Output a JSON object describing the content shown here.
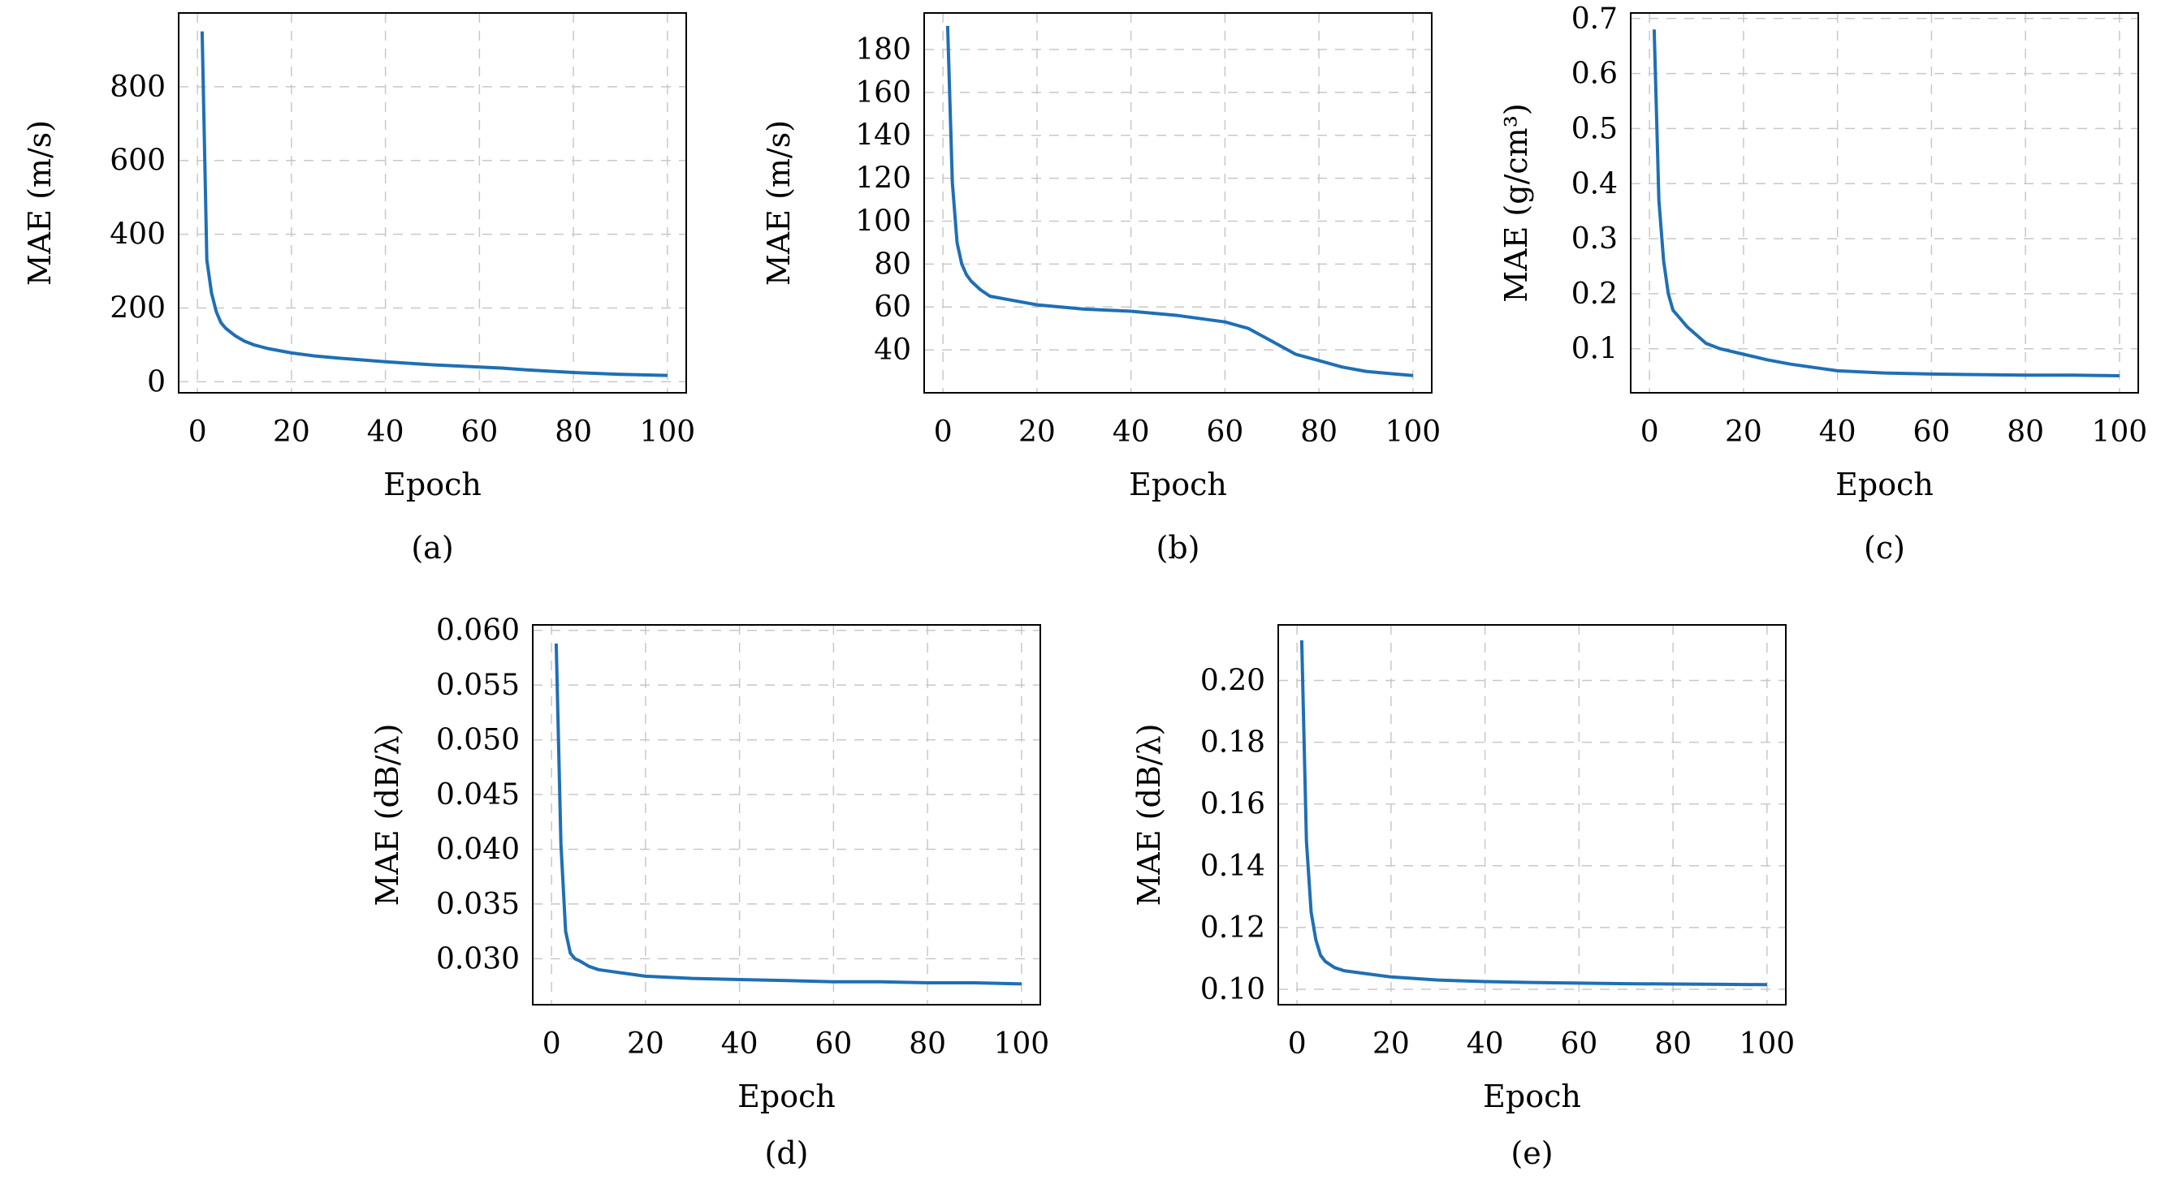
{
  "colors": {
    "series": "#1f6fb4",
    "grid": "#c8c8c8",
    "frame": "#000000"
  },
  "chart_data": [
    {
      "type": "line",
      "caption": "(a)",
      "xlabel": "Epoch",
      "ylabel": "MAE (m/s)",
      "grid": true,
      "xlim": [
        -4,
        104
      ],
      "ylim": [
        -30,
        1000
      ],
      "xticks": [
        0,
        20,
        40,
        60,
        80,
        100
      ],
      "yticks": [
        0,
        200,
        400,
        600,
        800
      ],
      "series": [
        {
          "x": [
            1,
            2,
            3,
            4,
            5,
            6,
            8,
            10,
            12,
            15,
            20,
            25,
            30,
            40,
            50,
            60,
            65,
            70,
            80,
            90,
            100
          ],
          "values": [
            950,
            330,
            240,
            190,
            160,
            145,
            125,
            110,
            100,
            90,
            78,
            70,
            64,
            54,
            46,
            40,
            37,
            32,
            25,
            20,
            17
          ]
        }
      ]
    },
    {
      "type": "line",
      "caption": "(b)",
      "xlabel": "Epoch",
      "ylabel": "MAE (m/s)",
      "grid": true,
      "xlim": [
        -4,
        104
      ],
      "ylim": [
        20,
        197
      ],
      "xticks": [
        0,
        20,
        40,
        60,
        80,
        100
      ],
      "yticks": [
        40,
        60,
        80,
        100,
        120,
        140,
        160,
        180
      ],
      "series": [
        {
          "x": [
            1,
            2,
            3,
            4,
            5,
            6,
            8,
            10,
            15,
            20,
            30,
            40,
            50,
            60,
            65,
            70,
            75,
            80,
            85,
            90,
            95,
            100
          ],
          "values": [
            191,
            118,
            90,
            80,
            75,
            72,
            68,
            65,
            63,
            61,
            59,
            58,
            56,
            53,
            50,
            44,
            38,
            35,
            32,
            30,
            29,
            28
          ]
        }
      ]
    },
    {
      "type": "line",
      "caption": "(c)",
      "xlabel": "Epoch",
      "ylabel": "MAE (g/cm³)",
      "grid": true,
      "xlim": [
        -4,
        104
      ],
      "ylim": [
        0.02,
        0.71
      ],
      "xticks": [
        0,
        20,
        40,
        60,
        80,
        100
      ],
      "yticks": [
        0.1,
        0.2,
        0.3,
        0.4,
        0.5,
        0.6,
        0.7
      ],
      "ytick_labels": [
        "0.1",
        "0.2",
        "0.3",
        "0.4",
        "0.5",
        "0.6",
        "0.7"
      ],
      "series": [
        {
          "x": [
            1,
            2,
            3,
            4,
            5,
            6,
            8,
            10,
            12,
            15,
            20,
            25,
            30,
            35,
            40,
            50,
            60,
            70,
            80,
            90,
            100
          ],
          "values": [
            0.68,
            0.37,
            0.26,
            0.2,
            0.17,
            0.16,
            0.14,
            0.125,
            0.11,
            0.1,
            0.09,
            0.08,
            0.072,
            0.066,
            0.06,
            0.056,
            0.054,
            0.053,
            0.052,
            0.052,
            0.051
          ]
        }
      ]
    },
    {
      "type": "line",
      "caption": "(d)",
      "xlabel": "Epoch",
      "ylabel": "MAE (dB/λ)",
      "grid": true,
      "xlim": [
        -4,
        104
      ],
      "ylim": [
        0.0258,
        0.0605
      ],
      "xticks": [
        0,
        20,
        40,
        60,
        80,
        100
      ],
      "yticks": [
        0.03,
        0.035,
        0.04,
        0.045,
        0.05,
        0.055,
        0.06
      ],
      "ytick_labels": [
        "0.030",
        "0.035",
        "0.040",
        "0.045",
        "0.050",
        "0.055",
        "0.060"
      ],
      "series": [
        {
          "x": [
            1,
            2,
            3,
            4,
            5,
            6,
            8,
            10,
            15,
            20,
            30,
            40,
            50,
            60,
            70,
            80,
            90,
            100
          ],
          "values": [
            0.0588,
            0.0405,
            0.0325,
            0.0305,
            0.03,
            0.0298,
            0.0293,
            0.029,
            0.0287,
            0.0284,
            0.0282,
            0.0281,
            0.028,
            0.0279,
            0.0279,
            0.0278,
            0.0278,
            0.0277
          ]
        }
      ]
    },
    {
      "type": "line",
      "caption": "(e)",
      "xlabel": "Epoch",
      "ylabel": "MAE (dB/λ)",
      "grid": true,
      "xlim": [
        -4,
        104
      ],
      "ylim": [
        0.095,
        0.218
      ],
      "xticks": [
        0,
        20,
        40,
        60,
        80,
        100
      ],
      "yticks": [
        0.1,
        0.12,
        0.14,
        0.16,
        0.18,
        0.2
      ],
      "ytick_labels": [
        "0.10",
        "0.12",
        "0.14",
        "0.16",
        "0.18",
        "0.20"
      ],
      "series": [
        {
          "x": [
            1,
            2,
            3,
            4,
            5,
            6,
            8,
            10,
            15,
            20,
            30,
            40,
            50,
            60,
            70,
            80,
            90,
            100
          ],
          "values": [
            0.213,
            0.148,
            0.125,
            0.116,
            0.111,
            0.109,
            0.107,
            0.106,
            0.105,
            0.104,
            0.103,
            0.1025,
            0.1022,
            0.102,
            0.1018,
            0.1017,
            0.1016,
            0.1015
          ]
        }
      ]
    }
  ]
}
